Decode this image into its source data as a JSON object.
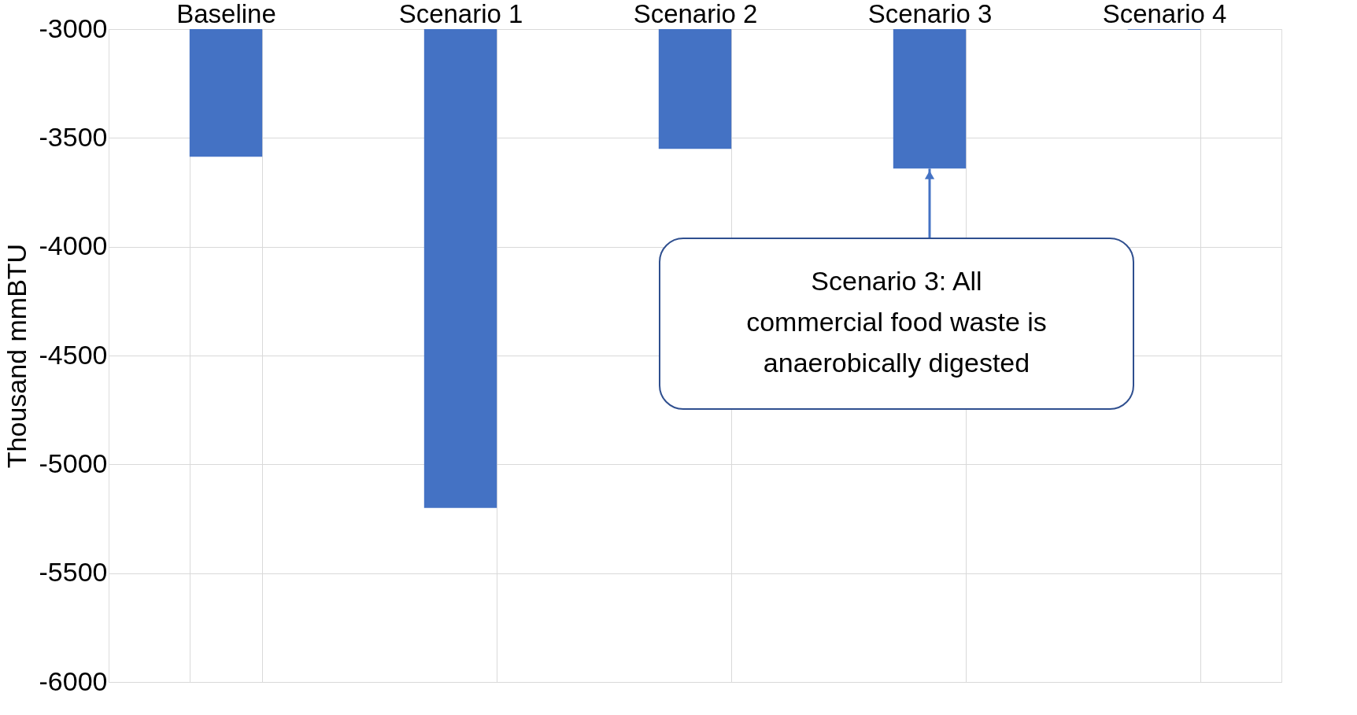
{
  "chart_data": {
    "type": "bar",
    "ylabel": "Thousand mmBTU",
    "categories": [
      "Baseline",
      "Scenario 1",
      "Scenario 2",
      "Scenario 3",
      "Scenario 4"
    ],
    "values": [
      -3586,
      -5200,
      -3550,
      -3641,
      -3003
    ],
    "color": "#4472c4",
    "ylim": [
      -6000,
      -3000
    ],
    "yticks": [
      -6000,
      -5500,
      -5000,
      -4500,
      -4000,
      -3500,
      -3000
    ],
    "grid": true,
    "annotations": [
      {
        "text": "Scenario 3: All\ncommercial food waste is\nanaerobically digested",
        "x": "Scenario 3",
        "y": -3641
      }
    ]
  }
}
